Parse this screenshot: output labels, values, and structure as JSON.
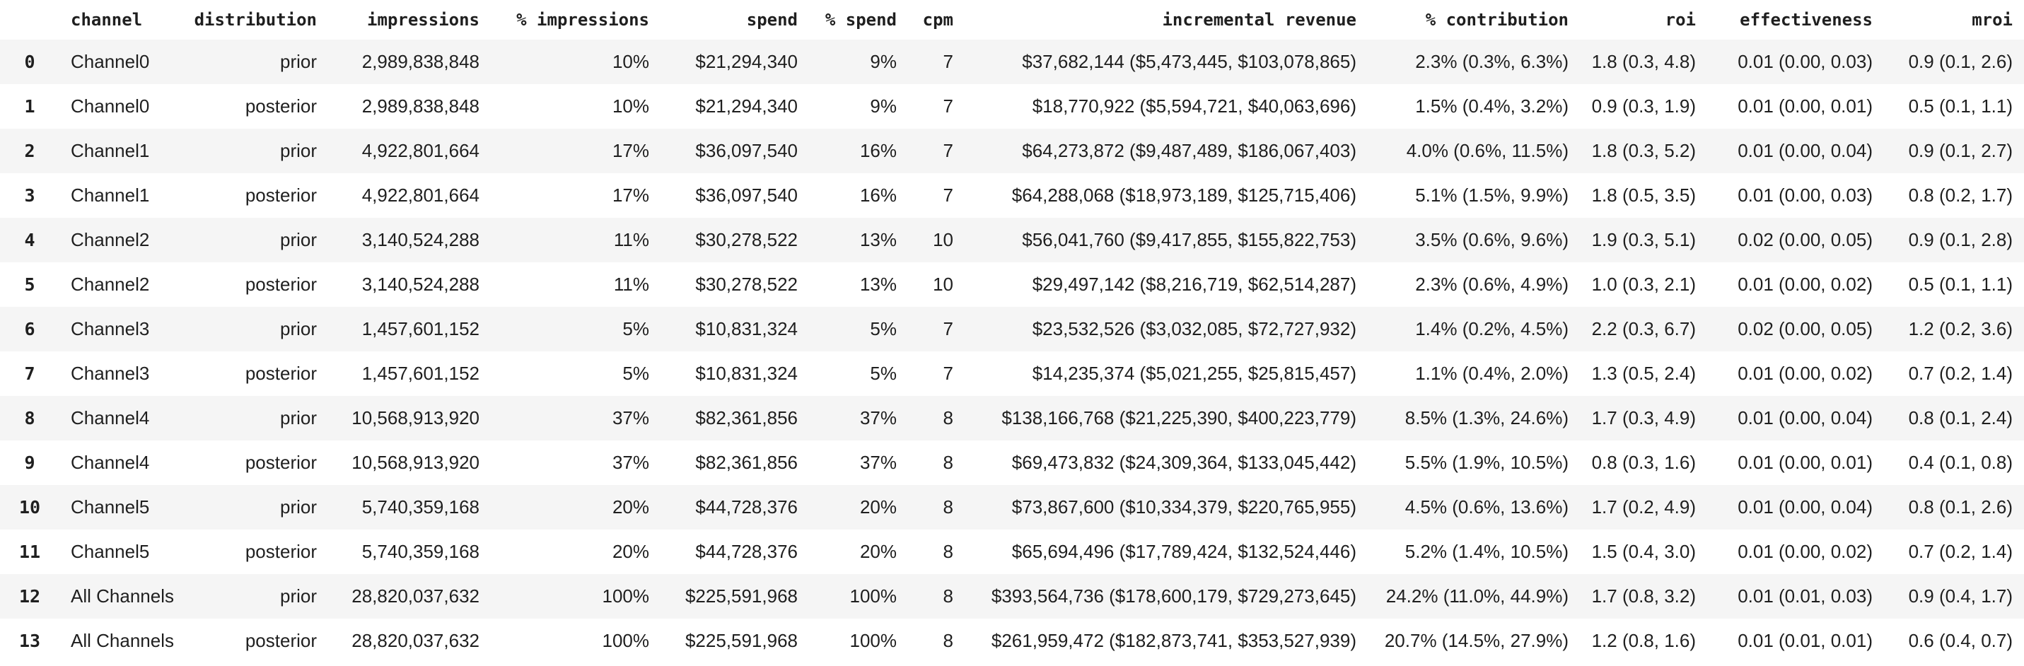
{
  "colors": {
    "background": "#ffffff",
    "row_stripe": "#f5f5f5",
    "text": "#1f1f1f"
  },
  "chart_data": {
    "type": "table",
    "title": "",
    "columns": [
      "channel",
      "distribution",
      "impressions",
      "% impressions",
      "spend",
      "% spend",
      "cpm",
      "incremental revenue",
      "% contribution",
      "roi",
      "effectiveness",
      "mroi"
    ],
    "index": [
      "0",
      "1",
      "2",
      "3",
      "4",
      "5",
      "6",
      "7",
      "8",
      "9",
      "10",
      "11",
      "12",
      "13"
    ],
    "rows": [
      [
        "Channel0",
        "prior",
        "2,989,838,848",
        "10%",
        "$21,294,340",
        "9%",
        "7",
        "$37,682,144 ($5,473,445, $103,078,865)",
        "2.3% (0.3%, 6.3%)",
        "1.8 (0.3, 4.8)",
        "0.01 (0.00, 0.03)",
        "0.9 (0.1, 2.6)"
      ],
      [
        "Channel0",
        "posterior",
        "2,989,838,848",
        "10%",
        "$21,294,340",
        "9%",
        "7",
        "$18,770,922 ($5,594,721, $40,063,696)",
        "1.5% (0.4%, 3.2%)",
        "0.9 (0.3, 1.9)",
        "0.01 (0.00, 0.01)",
        "0.5 (0.1, 1.1)"
      ],
      [
        "Channel1",
        "prior",
        "4,922,801,664",
        "17%",
        "$36,097,540",
        "16%",
        "7",
        "$64,273,872 ($9,487,489, $186,067,403)",
        "4.0% (0.6%, 11.5%)",
        "1.8 (0.3, 5.2)",
        "0.01 (0.00, 0.04)",
        "0.9 (0.1, 2.7)"
      ],
      [
        "Channel1",
        "posterior",
        "4,922,801,664",
        "17%",
        "$36,097,540",
        "16%",
        "7",
        "$64,288,068 ($18,973,189, $125,715,406)",
        "5.1% (1.5%, 9.9%)",
        "1.8 (0.5, 3.5)",
        "0.01 (0.00, 0.03)",
        "0.8 (0.2, 1.7)"
      ],
      [
        "Channel2",
        "prior",
        "3,140,524,288",
        "11%",
        "$30,278,522",
        "13%",
        "10",
        "$56,041,760 ($9,417,855, $155,822,753)",
        "3.5% (0.6%, 9.6%)",
        "1.9 (0.3, 5.1)",
        "0.02 (0.00, 0.05)",
        "0.9 (0.1, 2.8)"
      ],
      [
        "Channel2",
        "posterior",
        "3,140,524,288",
        "11%",
        "$30,278,522",
        "13%",
        "10",
        "$29,497,142 ($8,216,719, $62,514,287)",
        "2.3% (0.6%, 4.9%)",
        "1.0 (0.3, 2.1)",
        "0.01 (0.00, 0.02)",
        "0.5 (0.1, 1.1)"
      ],
      [
        "Channel3",
        "prior",
        "1,457,601,152",
        "5%",
        "$10,831,324",
        "5%",
        "7",
        "$23,532,526 ($3,032,085, $72,727,932)",
        "1.4% (0.2%, 4.5%)",
        "2.2 (0.3, 6.7)",
        "0.02 (0.00, 0.05)",
        "1.2 (0.2, 3.6)"
      ],
      [
        "Channel3",
        "posterior",
        "1,457,601,152",
        "5%",
        "$10,831,324",
        "5%",
        "7",
        "$14,235,374 ($5,021,255, $25,815,457)",
        "1.1% (0.4%, 2.0%)",
        "1.3 (0.5, 2.4)",
        "0.01 (0.00, 0.02)",
        "0.7 (0.2, 1.4)"
      ],
      [
        "Channel4",
        "prior",
        "10,568,913,920",
        "37%",
        "$82,361,856",
        "37%",
        "8",
        "$138,166,768 ($21,225,390, $400,223,779)",
        "8.5% (1.3%, 24.6%)",
        "1.7 (0.3, 4.9)",
        "0.01 (0.00, 0.04)",
        "0.8 (0.1, 2.4)"
      ],
      [
        "Channel4",
        "posterior",
        "10,568,913,920",
        "37%",
        "$82,361,856",
        "37%",
        "8",
        "$69,473,832 ($24,309,364, $133,045,442)",
        "5.5% (1.9%, 10.5%)",
        "0.8 (0.3, 1.6)",
        "0.01 (0.00, 0.01)",
        "0.4 (0.1, 0.8)"
      ],
      [
        "Channel5",
        "prior",
        "5,740,359,168",
        "20%",
        "$44,728,376",
        "20%",
        "8",
        "$73,867,600 ($10,334,379, $220,765,955)",
        "4.5% (0.6%, 13.6%)",
        "1.7 (0.2, 4.9)",
        "0.01 (0.00, 0.04)",
        "0.8 (0.1, 2.6)"
      ],
      [
        "Channel5",
        "posterior",
        "5,740,359,168",
        "20%",
        "$44,728,376",
        "20%",
        "8",
        "$65,694,496 ($17,789,424, $132,524,446)",
        "5.2% (1.4%, 10.5%)",
        "1.5 (0.4, 3.0)",
        "0.01 (0.00, 0.02)",
        "0.7 (0.2, 1.4)"
      ],
      [
        "All Channels",
        "prior",
        "28,820,037,632",
        "100%",
        "$225,591,968",
        "100%",
        "8",
        "$393,564,736 ($178,600,179, $729,273,645)",
        "24.2% (11.0%, 44.9%)",
        "1.7 (0.8, 3.2)",
        "0.01 (0.01, 0.03)",
        "0.9 (0.4, 1.7)"
      ],
      [
        "All Channels",
        "posterior",
        "28,820,037,632",
        "100%",
        "$225,591,968",
        "100%",
        "8",
        "$261,959,472 ($182,873,741, $353,527,939)",
        "20.7% (14.5%, 27.9%)",
        "1.2 (0.8, 1.6)",
        "0.01 (0.01, 0.01)",
        "0.6 (0.4, 0.7)"
      ]
    ]
  }
}
